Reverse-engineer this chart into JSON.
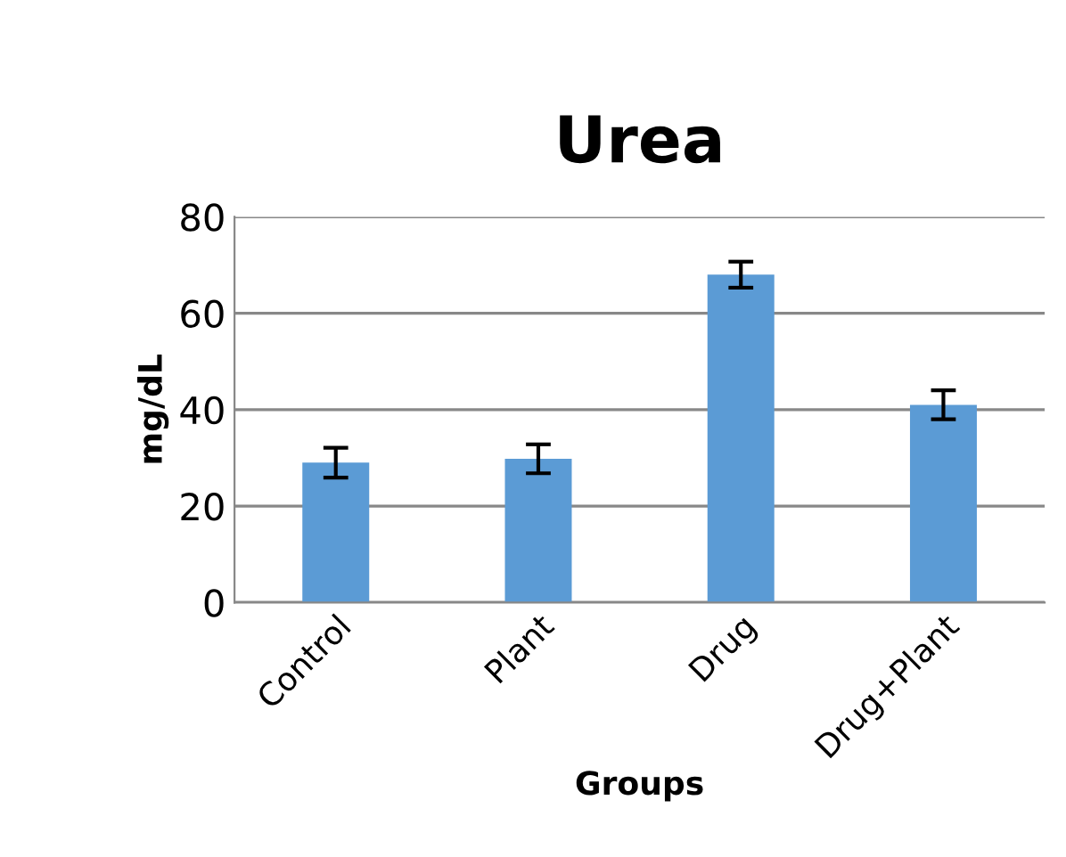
{
  "chart_data": {
    "type": "bar",
    "title": "Urea",
    "xlabel": "Groups",
    "ylabel": "mg/dL",
    "categories": [
      "Control",
      "Plant",
      "Drug",
      "Drug+Plant"
    ],
    "values": [
      29.0,
      29.8,
      68.0,
      41.0
    ],
    "errors": [
      3.1,
      3.0,
      2.7,
      3.0
    ],
    "color": "#5b9bd5",
    "ylim": [
      0,
      80
    ],
    "yticks": [
      0,
      20,
      40,
      60,
      80
    ],
    "grid": "y",
    "legend": false
  }
}
